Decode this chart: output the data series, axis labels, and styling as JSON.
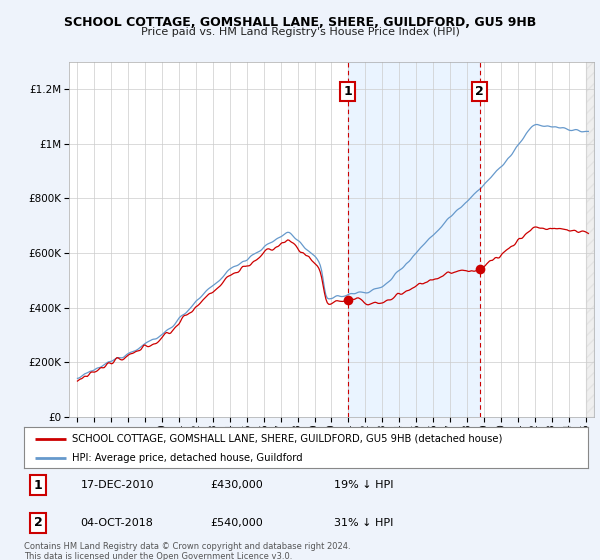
{
  "title": "SCHOOL COTTAGE, GOMSHALL LANE, SHERE, GUILDFORD, GU5 9HB",
  "subtitle": "Price paid vs. HM Land Registry's House Price Index (HPI)",
  "legend_line1": "SCHOOL COTTAGE, GOMSHALL LANE, SHERE, GUILDFORD, GU5 9HB (detached house)",
  "legend_line2": "HPI: Average price, detached house, Guildford",
  "annotation1_date": "17-DEC-2010",
  "annotation1_price": "£430,000",
  "annotation1_hpi": "19% ↓ HPI",
  "annotation2_date": "04-OCT-2018",
  "annotation2_price": "£540,000",
  "annotation2_hpi": "31% ↓ HPI",
  "footer": "Contains HM Land Registry data © Crown copyright and database right 2024.\nThis data is licensed under the Open Government Licence v3.0.",
  "sale1_x": 2010.96,
  "sale1_y": 430000,
  "sale2_x": 2018.75,
  "sale2_y": 540000,
  "vline1_x": 2010.96,
  "vline2_x": 2018.75,
  "ylim": [
    0,
    1300000
  ],
  "xlim": [
    1994.5,
    2025.5
  ],
  "bg_color": "#eef3fb",
  "plot_bg_color": "#ffffff",
  "red_color": "#cc0000",
  "blue_color": "#6699cc",
  "shade_color": "#ddeeff"
}
